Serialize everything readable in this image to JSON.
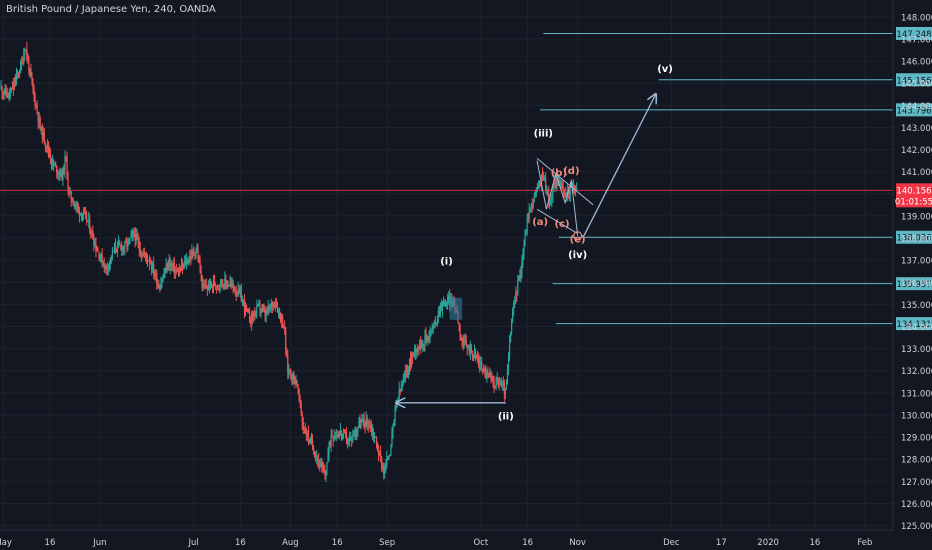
{
  "header": {
    "title": "British Pound / Japanese Yen, 240, OANDA"
  },
  "chart_data": {
    "type": "candlestick",
    "title": "British Pound / Japanese Yen, 240, OANDA",
    "ylim": [
      124.8,
      148.4
    ],
    "x_range": [
      "2019-04-30",
      "2020-02-10"
    ],
    "y_ticks": [
      125,
      126,
      127,
      128,
      129,
      130,
      131,
      132,
      133,
      134,
      135,
      136,
      137,
      138,
      139,
      140,
      141,
      142,
      143,
      144,
      145,
      146,
      147,
      148
    ],
    "y_tick_labels": [
      "125.000",
      "126.000",
      "127.000",
      "128.000",
      "129.000",
      "130.000",
      "131.000",
      "132.000",
      "133.000",
      "134.000",
      "135.000",
      "136.000",
      "137.000",
      "138.000",
      "139.000",
      "140.000",
      "141.000",
      "142.000",
      "143.000",
      "144.000",
      "145.000",
      "146.000",
      "147.000",
      "148.000"
    ],
    "x_ticks": [
      {
        "label": "May",
        "date": "2019-05-01"
      },
      {
        "label": "16",
        "date": "2019-05-16"
      },
      {
        "label": "Jun",
        "date": "2019-06-01"
      },
      {
        "label": "Jul",
        "date": "2019-07-01"
      },
      {
        "label": "16",
        "date": "2019-07-16"
      },
      {
        "label": "Aug",
        "date": "2019-08-01"
      },
      {
        "label": "16",
        "date": "2019-08-16"
      },
      {
        "label": "Sep",
        "date": "2019-09-01"
      },
      {
        "label": "Oct",
        "date": "2019-10-01"
      },
      {
        "label": "16",
        "date": "2019-10-16"
      },
      {
        "label": "Nov",
        "date": "2019-11-01"
      },
      {
        "label": "Dec",
        "date": "2019-12-01"
      },
      {
        "label": "17",
        "date": "2019-12-17"
      },
      {
        "label": "2020",
        "date": "2020-01-01"
      },
      {
        "label": "16",
        "date": "2020-01-16"
      },
      {
        "label": "Feb",
        "date": "2020-02-01"
      }
    ],
    "price_path": [
      [
        "2019-04-30",
        144.8
      ],
      [
        "2019-05-03",
        144.4
      ],
      [
        "2019-05-07",
        145.9
      ],
      [
        "2019-05-08",
        146.7
      ],
      [
        "2019-05-10",
        145.1
      ],
      [
        "2019-05-13",
        142.9
      ],
      [
        "2019-05-15",
        142.2
      ],
      [
        "2019-05-17",
        141.3
      ],
      [
        "2019-05-20",
        140.8
      ],
      [
        "2019-05-21",
        141.7
      ],
      [
        "2019-05-22",
        140.0
      ],
      [
        "2019-05-25",
        139.3
      ],
      [
        "2019-05-28",
        138.8
      ],
      [
        "2019-05-31",
        137.5
      ],
      [
        "2019-06-03",
        136.6
      ],
      [
        "2019-06-06",
        137.6
      ],
      [
        "2019-06-09",
        137.6
      ],
      [
        "2019-06-12",
        138.2
      ],
      [
        "2019-06-14",
        137.4
      ],
      [
        "2019-06-17",
        137.0
      ],
      [
        "2019-06-20",
        135.8
      ],
      [
        "2019-06-23",
        136.9
      ],
      [
        "2019-06-26",
        136.4
      ],
      [
        "2019-06-30",
        137.2
      ],
      [
        "2019-07-02",
        137.5
      ],
      [
        "2019-07-04",
        135.7
      ],
      [
        "2019-07-07",
        135.9
      ],
      [
        "2019-07-10",
        136.0
      ],
      [
        "2019-07-13",
        135.9
      ],
      [
        "2019-07-16",
        135.4
      ],
      [
        "2019-07-19",
        134.3
      ],
      [
        "2019-07-22",
        134.9
      ],
      [
        "2019-07-24",
        134.5
      ],
      [
        "2019-07-27",
        135.2
      ],
      [
        "2019-07-30",
        134.0
      ],
      [
        "2019-07-31",
        132.1
      ],
      [
        "2019-08-03",
        131.5
      ],
      [
        "2019-08-05",
        129.5
      ],
      [
        "2019-08-07",
        128.9
      ],
      [
        "2019-08-09",
        128.3
      ],
      [
        "2019-08-12",
        127.2
      ],
      [
        "2019-08-14",
        129.1
      ],
      [
        "2019-08-17",
        129.2
      ],
      [
        "2019-08-20",
        128.8
      ],
      [
        "2019-08-23",
        129.6
      ],
      [
        "2019-08-26",
        129.7
      ],
      [
        "2019-08-28",
        129.0
      ],
      [
        "2019-08-31",
        127.4
      ],
      [
        "2019-09-02",
        128.5
      ],
      [
        "2019-09-04",
        130.6
      ],
      [
        "2019-09-07",
        131.9
      ],
      [
        "2019-09-10",
        133.0
      ],
      [
        "2019-09-13",
        133.4
      ],
      [
        "2019-09-16",
        134.0
      ],
      [
        "2019-09-18",
        134.9
      ],
      [
        "2019-09-21",
        135.2
      ],
      [
        "2019-09-23",
        134.9
      ],
      [
        "2019-09-25",
        133.3
      ],
      [
        "2019-09-28",
        132.9
      ],
      [
        "2019-09-30",
        132.5
      ],
      [
        "2019-10-02",
        132.0
      ],
      [
        "2019-10-05",
        131.5
      ],
      [
        "2019-10-07",
        131.5
      ],
      [
        "2019-10-09",
        131.0
      ],
      [
        "2019-10-10",
        132.8
      ],
      [
        "2019-10-11",
        134.5
      ],
      [
        "2019-10-14",
        136.8
      ],
      [
        "2019-10-16",
        139.0
      ],
      [
        "2019-10-19",
        140.2
      ],
      [
        "2019-10-21",
        140.9
      ],
      [
        "2019-10-23",
        139.5
      ],
      [
        "2019-10-25",
        140.8
      ],
      [
        "2019-10-28",
        139.9
      ],
      [
        "2019-10-30",
        140.3
      ],
      [
        "2019-11-01",
        140.16
      ]
    ],
    "last_price": {
      "value": "140.156",
      "timer": "01:01:55"
    },
    "levels": [
      {
        "value": 147.248,
        "label": "147.248"
      },
      {
        "value": 145.156,
        "label": "145.156"
      },
      {
        "value": 143.796,
        "label": "143.796"
      },
      {
        "value": 138.036,
        "label": "138.036"
      },
      {
        "value": 135.937,
        "label": "135.937"
      },
      {
        "value": 134.131,
        "label": "134.131"
      }
    ],
    "annotations": {
      "wave_i": "(i)",
      "wave_ii": "(ii)",
      "wave_iii": "(iii)",
      "wave_iv": "(iv)",
      "wave_v": "(v)",
      "sub_a": "(a)",
      "sub_b": "(b)",
      "sub_c": "(c)",
      "sub_d": "(d)",
      "sub_e": "(e)"
    },
    "colors": {
      "background": "#131722",
      "grid": "#1e222d",
      "up": "#26a69a",
      "down": "#ef5350",
      "levels": "#5fb8c4",
      "last_price": "#f23645",
      "arrow": "#9fb8d8",
      "subwave": "#f08c7c",
      "text": "#d1d4dc"
    }
  }
}
